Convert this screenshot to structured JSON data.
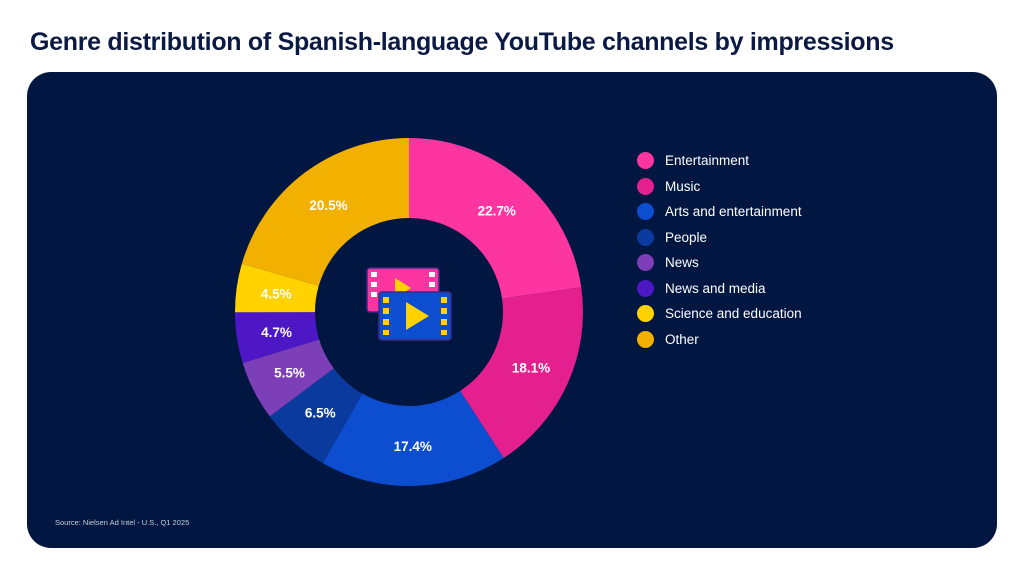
{
  "title": "Genre distribution of Spanish-language YouTube channels by impressions",
  "source": "Source: Nielsen Ad Intel - U.S., Q1 2025",
  "center_icon": "film-play-icon",
  "chart_data": {
    "type": "pie",
    "donut": true,
    "legend_position": "right",
    "categories": [
      "Entertainment",
      "Music",
      "Arts and entertainment",
      "People",
      "News",
      "News and media",
      "Science and education",
      "Other"
    ],
    "values": [
      22.7,
      18.1,
      17.4,
      6.5,
      5.5,
      4.7,
      4.5,
      20.5
    ],
    "labels": [
      "22.7%",
      "18.1%",
      "17.4%",
      "6.5%",
      "5.5%",
      "4.7%",
      "4.5%",
      "20.5%"
    ],
    "colors": [
      "#fd35a1",
      "#e4208f",
      "#0c4ecf",
      "#0a3a9e",
      "#7d3fb8",
      "#4d17c6",
      "#ffd200",
      "#f2b000"
    ]
  }
}
